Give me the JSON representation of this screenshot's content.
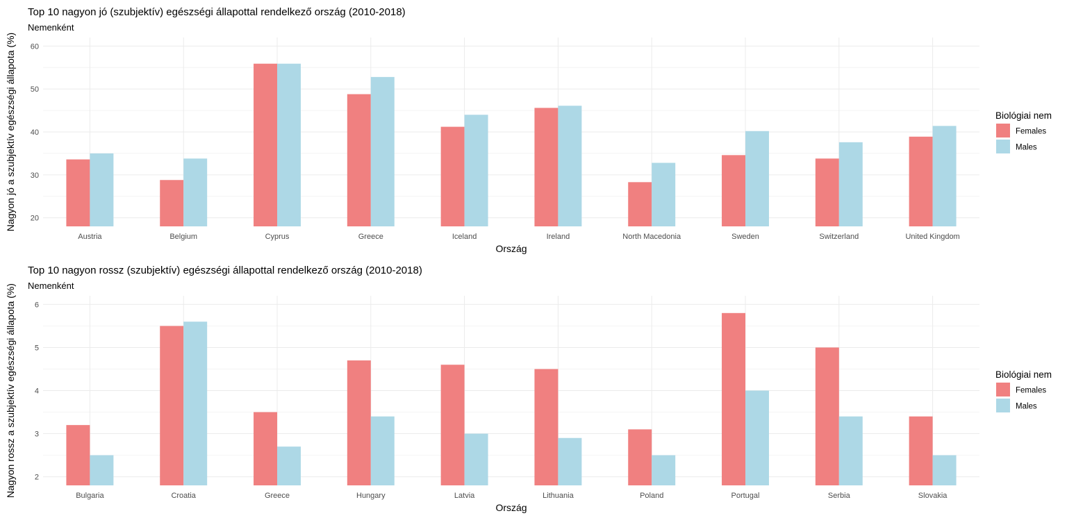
{
  "chart_data": [
    {
      "type": "bar",
      "title": "Top 10 nagyon jó (szubjektív) egészségi állapottal rendelkező ország (2010-2018)",
      "subtitle": "Nemenként",
      "xlabel": "Ország",
      "ylabel": "Nagyon jó a szubjektív egészségi állapota (%)",
      "ylim": [
        18,
        62
      ],
      "yticks": [
        20,
        30,
        40,
        50,
        60
      ],
      "categories": [
        "Austria",
        "Belgium",
        "Cyprus",
        "Greece",
        "Iceland",
        "Ireland",
        "North Macedonia",
        "Sweden",
        "Switzerland",
        "United Kingdom"
      ],
      "series": [
        {
          "name": "Females",
          "color": "#f08080",
          "values": [
            33.6,
            28.8,
            55.9,
            48.8,
            41.2,
            45.6,
            28.3,
            34.6,
            33.8,
            38.9
          ]
        },
        {
          "name": "Males",
          "color": "#add8e6",
          "values": [
            35.0,
            33.8,
            55.9,
            52.8,
            44.0,
            46.1,
            32.8,
            40.2,
            37.6,
            41.4
          ]
        }
      ],
      "legend_title": "Biológiai nem",
      "legend_position": "right",
      "grid": true
    },
    {
      "type": "bar",
      "title": "Top 10 nagyon rossz (szubjektív) egészségi állapottal rendelkező ország (2010-2018)",
      "subtitle": "Nemenként",
      "xlabel": "Ország",
      "ylabel": "Nagyon rossz a szubjektív egészségi állapota (%)",
      "ylim": [
        1.8,
        6.2
      ],
      "yticks": [
        2,
        3,
        4,
        5,
        6
      ],
      "categories": [
        "Bulgaria",
        "Croatia",
        "Greece",
        "Hungary",
        "Latvia",
        "Lithuania",
        "Poland",
        "Portugal",
        "Serbia",
        "Slovakia"
      ],
      "series": [
        {
          "name": "Females",
          "color": "#f08080",
          "values": [
            3.2,
            5.5,
            3.5,
            4.7,
            4.6,
            4.5,
            3.1,
            5.8,
            5.0,
            3.4
          ]
        },
        {
          "name": "Males",
          "color": "#add8e6",
          "values": [
            2.5,
            5.6,
            2.7,
            3.4,
            3.0,
            2.9,
            2.5,
            4.0,
            3.4,
            2.5
          ]
        }
      ],
      "legend_title": "Biológiai nem",
      "legend_position": "right",
      "grid": true
    }
  ]
}
